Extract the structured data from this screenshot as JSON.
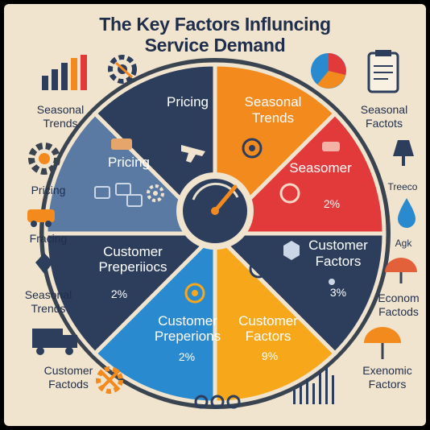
{
  "title": {
    "line1": "The Key Factors Influncing",
    "line2": "Service Demand"
  },
  "segments": {
    "top_left": {
      "label": "Pricing"
    },
    "top_right": {
      "line1": "Seasonal",
      "line2": "Trends"
    },
    "upper_left": {
      "label": "Pricing"
    },
    "upper_right": {
      "label": "Seasomer",
      "pct": "2%"
    },
    "lower_left": {
      "line1": "Customer",
      "line2": "Preperiiocs",
      "pct": "2%"
    },
    "lower_right": {
      "line1": "Customer",
      "line2": "Factors",
      "pct": "3%"
    },
    "bottom_left": {
      "line1": "Customer",
      "line2": "Preperions",
      "pct": "2%"
    },
    "bottom_right": {
      "line1": "Customer",
      "line2": "Factors",
      "pct": "9%"
    }
  },
  "left_labels": [
    {
      "line1": "Seasonal",
      "line2": "Trends"
    },
    {
      "line1": "Pricing",
      "line2": ""
    },
    {
      "line1": "Fracing",
      "line2": ""
    },
    {
      "line1": "Seasonal",
      "line2": "Trends"
    },
    {
      "line1": "Customer",
      "line2": "Factods"
    }
  ],
  "right_labels": [
    {
      "line1": "Seasonal",
      "line2": "Factots"
    },
    {
      "line1": "Treeco",
      "line2": ""
    },
    {
      "line1": "Agk",
      "line2": ""
    },
    {
      "line1": "Econom",
      "line2": "Factods"
    },
    {
      "line1": "Exenomic",
      "line2": "Factors"
    }
  ],
  "colors": {
    "background": "#f1e4cf",
    "navy": "#2d3e5c",
    "steel_blue": "#5a7aa3",
    "orange": "#f28a1e",
    "red": "#e23a3a",
    "blue": "#2a8ad0",
    "yellow_orange": "#f6a81a",
    "dark_gray": "#3a4450"
  },
  "icons": [
    "bar-chart-icon",
    "gear-icon",
    "pie-chart-icon",
    "clipboard-icon",
    "gear-icon",
    "lamp-icon",
    "truck-icon",
    "water-drop-icon",
    "umbrella-icon",
    "line-bars-icon",
    "gauge-icon"
  ]
}
